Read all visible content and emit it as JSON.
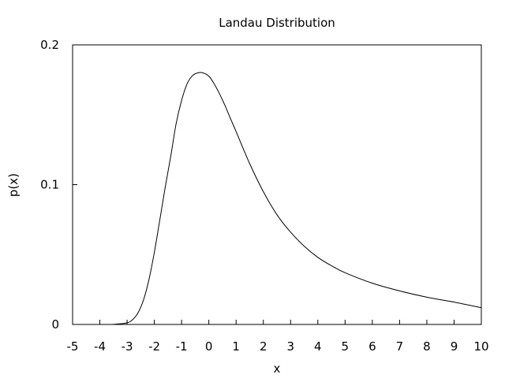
{
  "chart_data": {
    "type": "line",
    "title": "Landau Distribution",
    "xlabel": "x",
    "ylabel": "p(x)",
    "xlim": [
      -5,
      10
    ],
    "ylim": [
      0,
      0.2
    ],
    "x_ticks": [
      -5,
      -4,
      -3,
      -2,
      -1,
      0,
      1,
      2,
      3,
      4,
      5,
      6,
      7,
      8,
      9,
      10
    ],
    "y_ticks": [
      0,
      0.1,
      0.2
    ],
    "grid": false,
    "series": [
      {
        "x": [
          -5,
          -4,
          -3.5,
          -3,
          -2.8,
          -2.6,
          -2.4,
          -2.2,
          -2,
          -1.8,
          -1.6,
          -1.4,
          -1.2,
          -1,
          -0.8,
          -0.6,
          -0.4,
          -0.22,
          0,
          0.2,
          0.4,
          0.6,
          0.8,
          1,
          1.5,
          2,
          2.5,
          3,
          3.5,
          4,
          4.5,
          5,
          6,
          7,
          8,
          9,
          10
        ],
        "y": [
          0,
          0,
          0.0001,
          0.0012,
          0.0034,
          0.0083,
          0.0174,
          0.0319,
          0.0516,
          0.0747,
          0.0983,
          0.1201,
          0.1437,
          0.1603,
          0.1721,
          0.178,
          0.18,
          0.18,
          0.1776,
          0.172,
          0.1647,
          0.1563,
          0.147,
          0.138,
          0.115,
          0.095,
          0.0785,
          0.066,
          0.056,
          0.048,
          0.042,
          0.037,
          0.0295,
          0.024,
          0.0195,
          0.016,
          0.012
        ]
      }
    ]
  }
}
